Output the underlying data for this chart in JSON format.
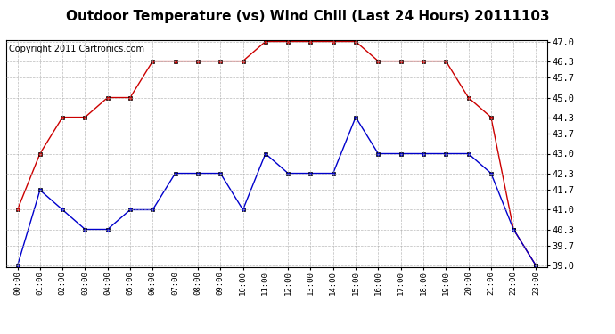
{
  "title": "Outdoor Temperature (vs) Wind Chill (Last 24 Hours) 20111103",
  "copyright": "Copyright 2011 Cartronics.com",
  "x_labels": [
    "00:00",
    "01:00",
    "02:00",
    "03:00",
    "04:00",
    "05:00",
    "06:00",
    "07:00",
    "08:00",
    "09:00",
    "10:00",
    "11:00",
    "12:00",
    "13:00",
    "14:00",
    "15:00",
    "16:00",
    "17:00",
    "18:00",
    "19:00",
    "20:00",
    "21:00",
    "22:00",
    "23:00"
  ],
  "temp_red": [
    41.0,
    43.0,
    44.3,
    44.3,
    45.0,
    45.0,
    46.3,
    46.3,
    46.3,
    46.3,
    46.3,
    47.0,
    47.0,
    47.0,
    47.0,
    47.0,
    46.3,
    46.3,
    46.3,
    46.3,
    45.0,
    44.3,
    40.3,
    39.0
  ],
  "wind_blue": [
    39.0,
    41.7,
    41.0,
    40.3,
    40.3,
    41.0,
    41.0,
    42.3,
    42.3,
    42.3,
    41.0,
    43.0,
    42.3,
    42.3,
    42.3,
    44.3,
    43.0,
    43.0,
    43.0,
    43.0,
    43.0,
    42.3,
    40.3,
    39.0
  ],
  "ylim_min": 39.0,
  "ylim_max": 47.0,
  "yticks": [
    39.0,
    39.7,
    40.3,
    41.0,
    41.7,
    42.3,
    43.0,
    43.7,
    44.3,
    45.0,
    45.7,
    46.3,
    47.0
  ],
  "red_color": "#cc0000",
  "blue_color": "#0000cc",
  "bg_color": "#ffffff",
  "grid_color": "#aaaaaa",
  "title_fontsize": 11,
  "copyright_fontsize": 7
}
